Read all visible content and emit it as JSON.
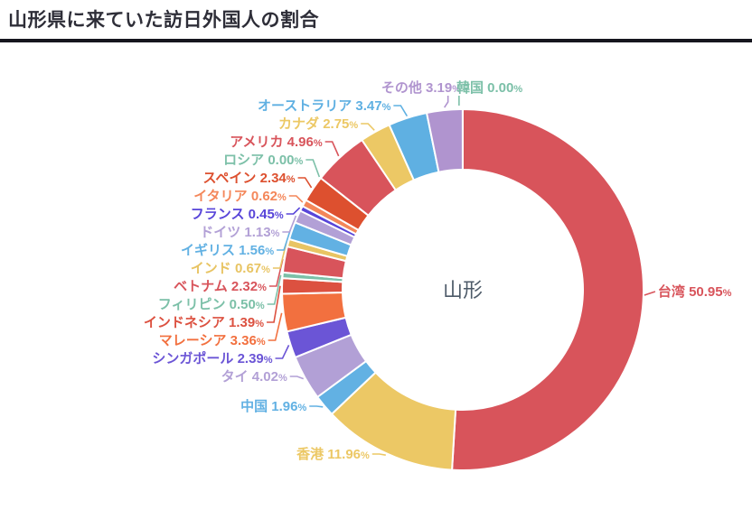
{
  "header": {
    "title": "山形県に来ていた訪日外国人の割合"
  },
  "chart_data": {
    "type": "pie",
    "subtype": "donut",
    "title": "山形県に来ていた訪日外国人の割合",
    "center_label": "山形",
    "unit": "%",
    "direction": "clockwise",
    "start_angle_deg": 0,
    "donut_hole_ratio": 0.665,
    "label_position": "outside",
    "legend": "none",
    "series": [
      {
        "name": "台湾",
        "value": 50.95,
        "color": "#d8545b"
      },
      {
        "name": "香港",
        "value": 11.96,
        "color": "#ecc865"
      },
      {
        "name": "中国",
        "value": 1.96,
        "color": "#62b1e3"
      },
      {
        "name": "タイ",
        "value": 4.02,
        "color": "#b2a0d6"
      },
      {
        "name": "シンガポール",
        "value": 2.39,
        "color": "#6b55d6"
      },
      {
        "name": "マレーシア",
        "value": 3.36,
        "color": "#f2703f"
      },
      {
        "name": "インドネシア",
        "value": 1.39,
        "color": "#dc5140"
      },
      {
        "name": "フィリピン",
        "value": 0.5,
        "color": "#7cc0a8"
      },
      {
        "name": "ベトナム",
        "value": 2.32,
        "color": "#d8545b"
      },
      {
        "name": "インド",
        "value": 0.67,
        "color": "#e8c463"
      },
      {
        "name": "イギリス",
        "value": 1.56,
        "color": "#62b1e3"
      },
      {
        "name": "ドイツ",
        "value": 1.13,
        "color": "#b2a0d6"
      },
      {
        "name": "フランス",
        "value": 0.45,
        "color": "#5845d9"
      },
      {
        "name": "イタリア",
        "value": 0.62,
        "color": "#f4875a"
      },
      {
        "name": "スペイン",
        "value": 2.34,
        "color": "#dd502f"
      },
      {
        "name": "ロシア",
        "value": 0.0,
        "color": "#7cc0a8"
      },
      {
        "name": "アメリカ",
        "value": 4.96,
        "color": "#d8545b"
      },
      {
        "name": "カナダ",
        "value": 2.75,
        "color": "#ecc865"
      },
      {
        "name": "オーストラリア",
        "value": 3.47,
        "color": "#5fb0e2"
      },
      {
        "name": "その他",
        "value": 3.19,
        "color": "#b094cf"
      },
      {
        "name": "韓国",
        "value": 0.0,
        "color": "#7cc0a8"
      }
    ]
  }
}
